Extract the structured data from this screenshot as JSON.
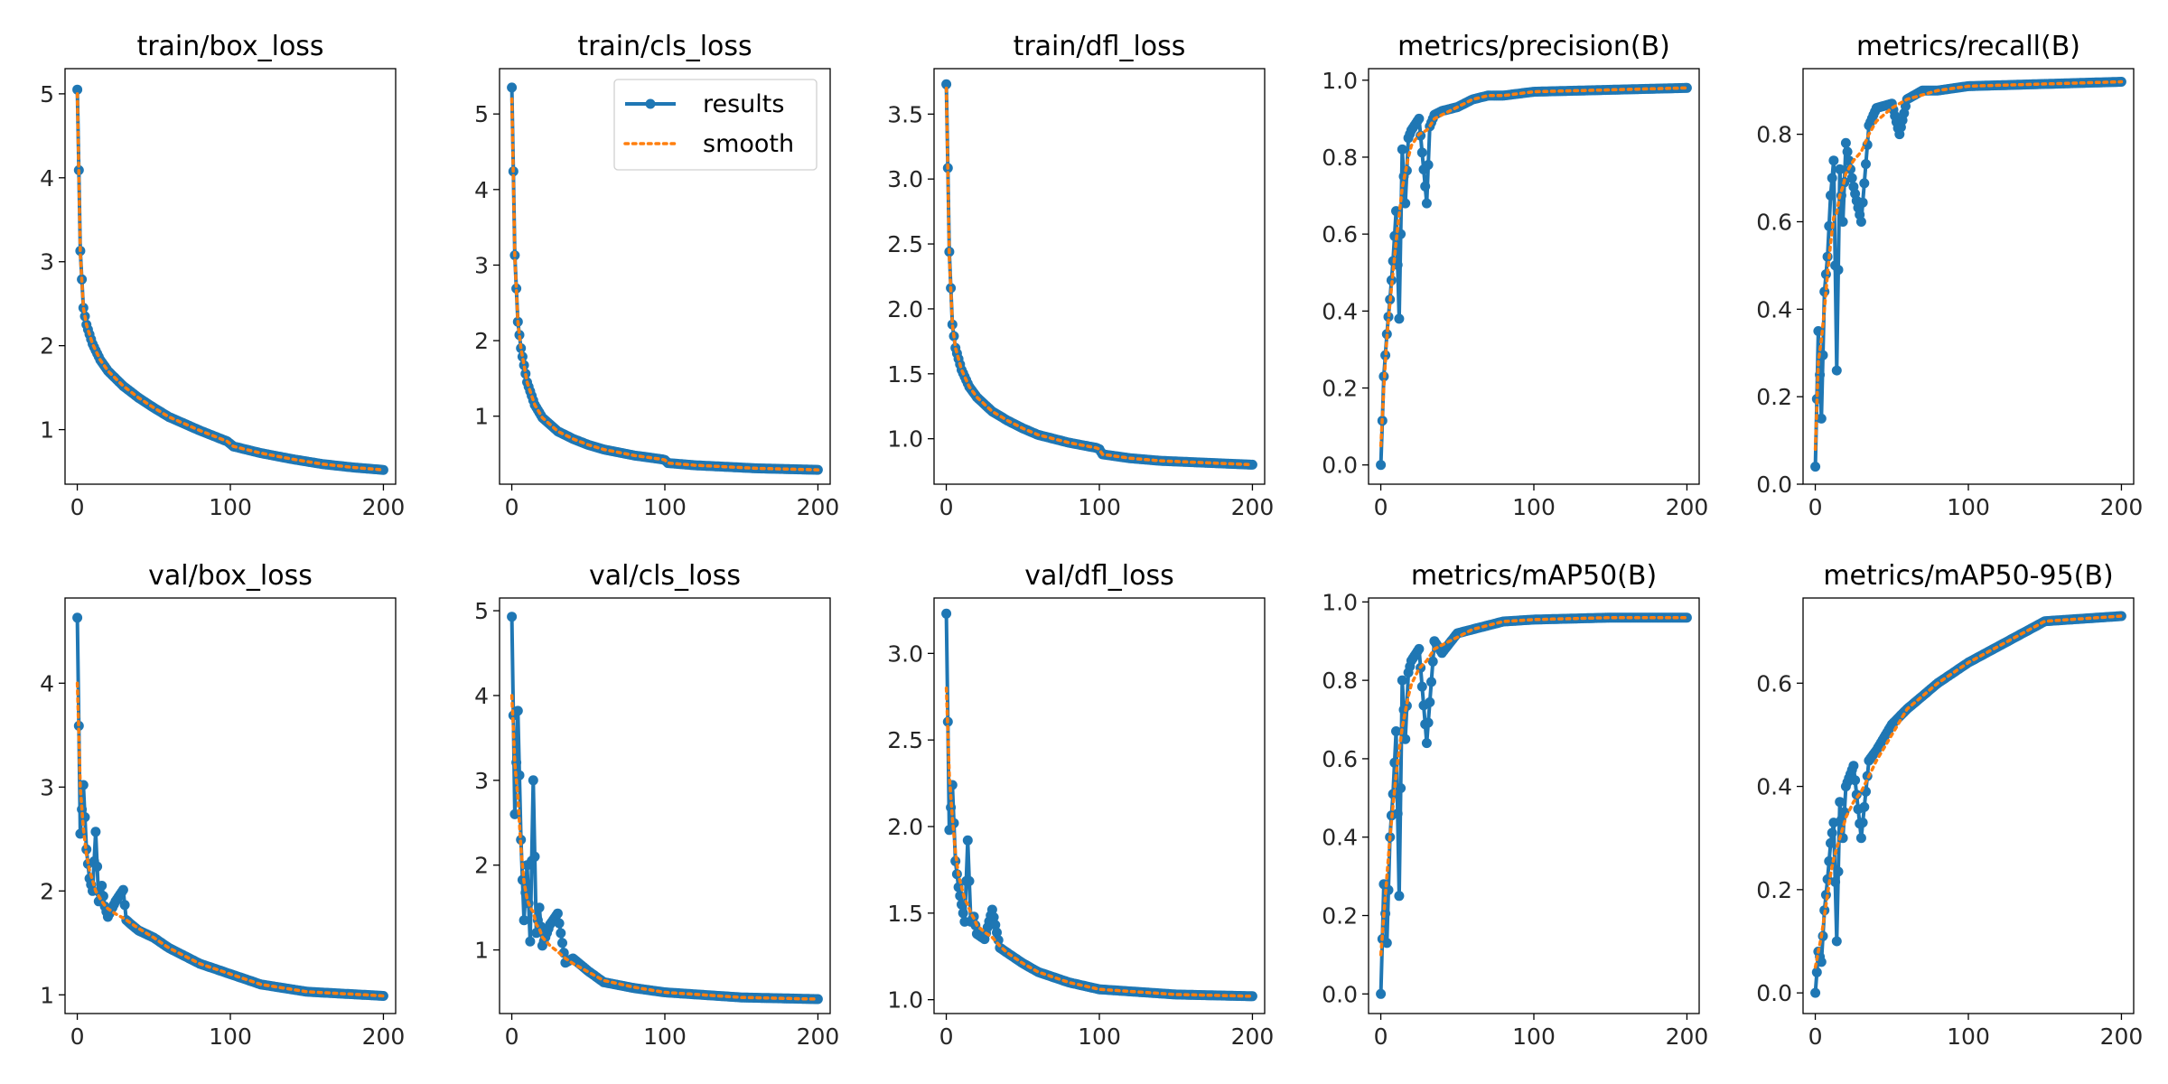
{
  "colors": {
    "results": "#1f77b4",
    "smooth": "#ff7f0e"
  },
  "legend": {
    "results_label": "results",
    "smooth_label": "smooth",
    "placement": "top-right of train/cls_loss"
  },
  "chart_data": [
    {
      "type": "line",
      "title": "train/box_loss",
      "xlabel": "",
      "ylabel": "",
      "xlim": [
        -8,
        208
      ],
      "ylim": [
        0.35,
        5.3
      ],
      "xticks": [
        0,
        100,
        200
      ],
      "yticks": [
        1,
        2,
        3,
        4,
        5
      ],
      "x_keypoints": [
        0,
        2,
        4,
        6,
        10,
        15,
        20,
        30,
        40,
        50,
        60,
        80,
        98,
        100,
        102,
        120,
        140,
        160,
        180,
        200
      ],
      "series": [
        {
          "name": "results",
          "values": [
            5.05,
            3.13,
            2.45,
            2.25,
            2.02,
            1.83,
            1.7,
            1.52,
            1.38,
            1.26,
            1.15,
            0.99,
            0.86,
            0.83,
            0.8,
            0.72,
            0.65,
            0.59,
            0.55,
            0.52
          ]
        },
        {
          "name": "smooth",
          "values": [
            5.0,
            3.1,
            2.45,
            2.25,
            2.02,
            1.83,
            1.7,
            1.52,
            1.38,
            1.26,
            1.15,
            0.99,
            0.86,
            0.83,
            0.8,
            0.72,
            0.65,
            0.59,
            0.55,
            0.52
          ]
        }
      ]
    },
    {
      "type": "line",
      "title": "train/cls_loss",
      "xlabel": "",
      "ylabel": "",
      "xlim": [
        -8,
        208
      ],
      "ylim": [
        0.1,
        5.6
      ],
      "xticks": [
        0,
        100,
        200
      ],
      "yticks": [
        1,
        2,
        3,
        4,
        5
      ],
      "x_keypoints": [
        0,
        2,
        4,
        6,
        10,
        15,
        20,
        30,
        40,
        50,
        60,
        80,
        98,
        100,
        102,
        120,
        140,
        160,
        180,
        200
      ],
      "series": [
        {
          "name": "results",
          "values": [
            5.35,
            3.13,
            2.25,
            1.9,
            1.45,
            1.15,
            0.98,
            0.8,
            0.7,
            0.62,
            0.56,
            0.48,
            0.43,
            0.42,
            0.38,
            0.35,
            0.33,
            0.31,
            0.3,
            0.29
          ]
        },
        {
          "name": "smooth",
          "values": [
            5.2,
            3.1,
            2.25,
            1.9,
            1.45,
            1.15,
            0.98,
            0.8,
            0.7,
            0.62,
            0.56,
            0.48,
            0.43,
            0.42,
            0.38,
            0.35,
            0.33,
            0.31,
            0.3,
            0.29
          ]
        }
      ]
    },
    {
      "type": "line",
      "title": "train/dfl_loss",
      "xlabel": "",
      "ylabel": "",
      "xlim": [
        -8,
        208
      ],
      "ylim": [
        0.65,
        3.85
      ],
      "xticks": [
        0,
        100,
        200
      ],
      "yticks": [
        1.0,
        1.5,
        2.0,
        2.5,
        3.0,
        3.5
      ],
      "x_keypoints": [
        0,
        2,
        4,
        6,
        10,
        15,
        20,
        30,
        40,
        50,
        60,
        80,
        98,
        100,
        102,
        120,
        140,
        160,
        180,
        200
      ],
      "series": [
        {
          "name": "results",
          "values": [
            3.73,
            2.44,
            1.88,
            1.7,
            1.53,
            1.4,
            1.32,
            1.21,
            1.14,
            1.08,
            1.03,
            0.97,
            0.93,
            0.92,
            0.88,
            0.85,
            0.83,
            0.82,
            0.81,
            0.8
          ]
        },
        {
          "name": "smooth",
          "values": [
            3.7,
            2.4,
            1.88,
            1.7,
            1.53,
            1.4,
            1.32,
            1.21,
            1.14,
            1.08,
            1.03,
            0.97,
            0.93,
            0.92,
            0.88,
            0.85,
            0.83,
            0.82,
            0.81,
            0.8
          ]
        }
      ]
    },
    {
      "type": "line",
      "title": "metrics/precision(B)",
      "xlabel": "",
      "ylabel": "",
      "xlim": [
        -8,
        208
      ],
      "ylim": [
        -0.05,
        1.03
      ],
      "xticks": [
        0,
        100,
        200
      ],
      "yticks": [
        0.0,
        0.2,
        0.4,
        0.6,
        0.8,
        1.0
      ],
      "x_keypoints": [
        0,
        2,
        4,
        6,
        8,
        10,
        12,
        14,
        16,
        18,
        20,
        25,
        30,
        32,
        35,
        40,
        50,
        60,
        70,
        80,
        100,
        150,
        200
      ],
      "series": [
        {
          "name": "results",
          "values": [
            0.0,
            0.23,
            0.34,
            0.43,
            0.53,
            0.66,
            0.38,
            0.82,
            0.68,
            0.85,
            0.87,
            0.9,
            0.68,
            0.88,
            0.91,
            0.92,
            0.93,
            0.95,
            0.96,
            0.96,
            0.97,
            0.975,
            0.98
          ]
        },
        {
          "name": "smooth",
          "values": [
            0.05,
            0.2,
            0.33,
            0.42,
            0.5,
            0.58,
            0.65,
            0.72,
            0.76,
            0.8,
            0.83,
            0.86,
            0.87,
            0.88,
            0.9,
            0.91,
            0.93,
            0.95,
            0.96,
            0.96,
            0.97,
            0.975,
            0.98
          ]
        }
      ]
    },
    {
      "type": "line",
      "title": "metrics/recall(B)",
      "xlabel": "",
      "ylabel": "",
      "xlim": [
        -8,
        208
      ],
      "ylim": [
        0.0,
        0.95
      ],
      "xticks": [
        0,
        100,
        200
      ],
      "yticks": [
        0.0,
        0.2,
        0.4,
        0.6,
        0.8
      ],
      "x_keypoints": [
        0,
        2,
        4,
        6,
        8,
        10,
        12,
        14,
        16,
        18,
        20,
        25,
        30,
        35,
        40,
        50,
        55,
        60,
        70,
        80,
        100,
        150,
        200
      ],
      "series": [
        {
          "name": "results",
          "values": [
            0.04,
            0.35,
            0.15,
            0.44,
            0.52,
            0.66,
            0.74,
            0.26,
            0.72,
            0.6,
            0.78,
            0.68,
            0.6,
            0.82,
            0.86,
            0.87,
            0.8,
            0.88,
            0.9,
            0.9,
            0.91,
            0.915,
            0.92
          ]
        },
        {
          "name": "smooth",
          "values": [
            0.08,
            0.28,
            0.33,
            0.4,
            0.48,
            0.55,
            0.61,
            0.62,
            0.66,
            0.68,
            0.71,
            0.74,
            0.76,
            0.8,
            0.83,
            0.86,
            0.87,
            0.88,
            0.89,
            0.9,
            0.91,
            0.915,
            0.92
          ]
        }
      ]
    },
    {
      "type": "line",
      "title": "val/box_loss",
      "xlabel": "",
      "ylabel": "",
      "xlim": [
        -8,
        208
      ],
      "ylim": [
        0.82,
        4.82
      ],
      "xticks": [
        0,
        100,
        200
      ],
      "yticks": [
        1,
        2,
        3,
        4
      ],
      "x_keypoints": [
        0,
        2,
        4,
        6,
        8,
        10,
        12,
        14,
        16,
        18,
        20,
        25,
        30,
        32,
        35,
        40,
        50,
        60,
        80,
        100,
        120,
        150,
        200
      ],
      "series": [
        {
          "name": "results",
          "values": [
            4.63,
            2.55,
            3.02,
            2.4,
            2.12,
            2.0,
            2.57,
            1.9,
            2.05,
            1.85,
            1.75,
            1.9,
            2.01,
            1.72,
            1.68,
            1.62,
            1.55,
            1.45,
            1.3,
            1.2,
            1.1,
            1.03,
            0.99
          ]
        },
        {
          "name": "smooth",
          "values": [
            4.0,
            3.0,
            2.6,
            2.35,
            2.2,
            2.1,
            2.0,
            1.95,
            1.9,
            1.86,
            1.83,
            1.78,
            1.74,
            1.72,
            1.69,
            1.64,
            1.55,
            1.45,
            1.3,
            1.2,
            1.1,
            1.03,
            0.99
          ]
        }
      ]
    },
    {
      "type": "line",
      "title": "val/cls_loss",
      "xlabel": "",
      "ylabel": "",
      "xlim": [
        -8,
        208
      ],
      "ylim": [
        0.25,
        5.15
      ],
      "xticks": [
        0,
        100,
        200
      ],
      "yticks": [
        1,
        2,
        3,
        4,
        5
      ],
      "x_keypoints": [
        0,
        2,
        4,
        6,
        8,
        10,
        12,
        14,
        16,
        18,
        20,
        25,
        30,
        35,
        40,
        50,
        60,
        80,
        100,
        150,
        200
      ],
      "series": [
        {
          "name": "results",
          "values": [
            4.93,
            2.6,
            3.82,
            2.3,
            1.35,
            2.0,
            1.1,
            3.0,
            1.2,
            1.5,
            1.05,
            1.3,
            1.43,
            0.85,
            0.9,
            0.75,
            0.62,
            0.55,
            0.5,
            0.44,
            0.42
          ]
        },
        {
          "name": "smooth",
          "values": [
            4.0,
            3.2,
            2.8,
            2.2,
            1.8,
            1.6,
            1.5,
            1.45,
            1.3,
            1.25,
            1.15,
            1.05,
            0.98,
            0.9,
            0.84,
            0.74,
            0.64,
            0.56,
            0.5,
            0.44,
            0.42
          ]
        }
      ]
    },
    {
      "type": "line",
      "title": "val/dfl_loss",
      "xlabel": "",
      "ylabel": "",
      "xlim": [
        -8,
        208
      ],
      "ylim": [
        0.92,
        3.32
      ],
      "xticks": [
        0,
        100,
        200
      ],
      "yticks": [
        1.0,
        1.5,
        2.0,
        2.5,
        3.0
      ],
      "x_keypoints": [
        0,
        2,
        4,
        6,
        8,
        10,
        12,
        14,
        16,
        18,
        20,
        25,
        30,
        35,
        40,
        50,
        60,
        80,
        100,
        150,
        200
      ],
      "series": [
        {
          "name": "results",
          "values": [
            3.23,
            1.98,
            2.24,
            1.8,
            1.65,
            1.55,
            1.45,
            1.92,
            1.45,
            1.48,
            1.38,
            1.35,
            1.52,
            1.3,
            1.27,
            1.21,
            1.16,
            1.1,
            1.06,
            1.03,
            1.02
          ]
        },
        {
          "name": "smooth",
          "values": [
            2.8,
            2.3,
            2.05,
            1.85,
            1.72,
            1.65,
            1.58,
            1.55,
            1.5,
            1.47,
            1.43,
            1.39,
            1.36,
            1.31,
            1.27,
            1.21,
            1.16,
            1.1,
            1.06,
            1.03,
            1.02
          ]
        }
      ]
    },
    {
      "type": "line",
      "title": "metrics/mAP50(B)",
      "xlabel": "",
      "ylabel": "",
      "xlim": [
        -8,
        208
      ],
      "ylim": [
        -0.05,
        1.01
      ],
      "xticks": [
        0,
        100,
        200
      ],
      "yticks": [
        0.0,
        0.2,
        0.4,
        0.6,
        0.8,
        1.0
      ],
      "x_keypoints": [
        0,
        2,
        4,
        6,
        8,
        10,
        12,
        14,
        16,
        18,
        20,
        25,
        30,
        35,
        40,
        50,
        60,
        80,
        100,
        150,
        200
      ],
      "series": [
        {
          "name": "results",
          "values": [
            0.0,
            0.28,
            0.13,
            0.4,
            0.51,
            0.67,
            0.25,
            0.8,
            0.65,
            0.82,
            0.85,
            0.88,
            0.64,
            0.9,
            0.87,
            0.92,
            0.93,
            0.95,
            0.955,
            0.96,
            0.96
          ]
        },
        {
          "name": "smooth",
          "values": [
            0.1,
            0.2,
            0.3,
            0.4,
            0.48,
            0.56,
            0.62,
            0.68,
            0.72,
            0.76,
            0.79,
            0.83,
            0.85,
            0.88,
            0.89,
            0.91,
            0.93,
            0.95,
            0.955,
            0.96,
            0.96
          ]
        }
      ]
    },
    {
      "type": "line",
      "title": "metrics/mAP50-95(B)",
      "xlabel": "",
      "ylabel": "",
      "xlim": [
        -8,
        208
      ],
      "ylim": [
        -0.04,
        0.765
      ],
      "xticks": [
        0,
        100,
        200
      ],
      "yticks": [
        0.0,
        0.2,
        0.4,
        0.6
      ],
      "x_keypoints": [
        0,
        2,
        4,
        6,
        8,
        10,
        12,
        14,
        16,
        18,
        20,
        25,
        30,
        35,
        40,
        50,
        60,
        80,
        100,
        150,
        200
      ],
      "series": [
        {
          "name": "results",
          "values": [
            0.0,
            0.08,
            0.06,
            0.16,
            0.22,
            0.29,
            0.33,
            0.1,
            0.37,
            0.3,
            0.4,
            0.44,
            0.3,
            0.45,
            0.47,
            0.52,
            0.55,
            0.6,
            0.64,
            0.72,
            0.73
          ]
        },
        {
          "name": "smooth",
          "values": [
            0.05,
            0.08,
            0.11,
            0.15,
            0.19,
            0.23,
            0.26,
            0.28,
            0.3,
            0.32,
            0.34,
            0.37,
            0.39,
            0.42,
            0.45,
            0.5,
            0.55,
            0.6,
            0.64,
            0.72,
            0.73
          ]
        }
      ]
    }
  ]
}
